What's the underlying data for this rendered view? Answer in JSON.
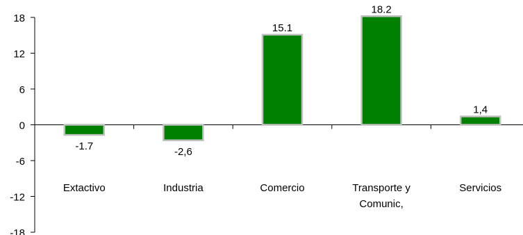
{
  "chart_data": {
    "type": "bar",
    "categories": [
      [
        "Extactivo"
      ],
      [
        "Industria"
      ],
      [
        "Comercio"
      ],
      [
        "Transporte y",
        "Comunic,"
      ],
      [
        "Servicios"
      ]
    ],
    "values": [
      -1.7,
      -2.6,
      15.1,
      18.2,
      1.4
    ],
    "data_labels": [
      "-1.7",
      "-2,6",
      "15.1",
      "18.2",
      "1,4"
    ],
    "ylim": [
      -18,
      18
    ],
    "yticks": [
      18,
      12,
      6,
      0,
      -6,
      -12,
      -18
    ],
    "title": "",
    "xlabel": "",
    "ylabel": "",
    "grid": false,
    "colors": {
      "bar_fill": "#008000",
      "bar_stroke": "#c0c0c0",
      "axis": "#000000"
    }
  }
}
